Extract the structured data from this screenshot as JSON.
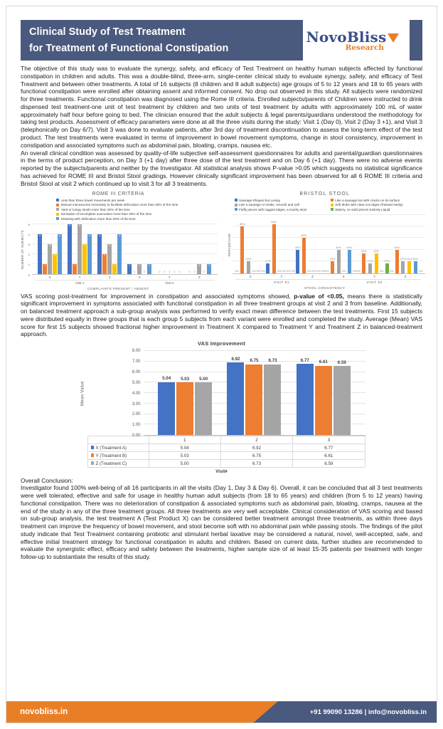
{
  "colors": {
    "banner": "#4a597e",
    "orange": "#e87f27",
    "logo_blue": "#3b4f88"
  },
  "header": {
    "title_line1": "Clinical Study of Test Treatment",
    "title_line2": "for Treatment of Functional Constipation",
    "logo_name": "NovoBliss",
    "logo_sub": "Research"
  },
  "intro": {
    "p1": "The objective of this study was to evaluate the synergy, safety, and efficacy of Test Treatment on healthy human subjects affected by functional constipation in children and adults. This was a double-blind, three-arm, single-center clinical study to evaluate synergy, safety, and efficacy of Test Treatment and between other treatments. A total of 16 subjects (8 children and 8 adult subjects) age groups of 5 to 12 years and 18 to 65 years with functional constipation were enrolled after obtaining assent and informed consent. No drop out observed in this study. All subjects were randomized for three treatments. Functional constipation was diagnosed using the Rome III criteria. Enrolled subjects/parents of Children were instructed to drink dispensed test treatment-one unit of test treatment by children and two units of test treatment by adults with approximately 100 mL of water approximately half hour before going to bed. The clinician ensured that the adult subjects & legal parents/guardians understood the methodology for taking test products. Assessment of efficacy parameters were done at all the three visits during the study: Visit 1 (Day 0), Visit 2 (Day 3 +1), and Visit 3 (telephonically on Day 6/7). Visit 3 was done to evaluate patients, after 3rd day of treatment discontinuation to assess the long-term effect of the test product. The test treatments were evaluated in terms of improvement in bowel movement symptoms, change in stool consistency, improvement in constipation and associated symptoms such as abdominal pain, bloating, cramps, nausea etc.",
    "p2": "An overall clinical condition was assessed by quality-of-life subjective self-assessment questionnaires for adults and parental/guardian questionnaires in the terms of product perception, on Day 3 (+1 day) after three dose of the test treatment and on Day 6 (+1 day). There were no adverse events reported by the subjects/parents and neither by the Investigator. All statistical analysis shows P-value >0.05 which suggests no statistical significance has achieved for ROME III and Bristol Stool gradings. However clinically significant improvement has been observed for all 6 ROME III criteria and Bristol Stool at visit 2 which continued up to visit 3 for all 3 treatments."
  },
  "vas_text": {
    "before": "VAS scoring post-treatment for improvement in constipation and associated symptoms showed, ",
    "bold": "p-value of <0.05,",
    "after": " means there is statistically significant improvement in symptoms associated with functional constipation in all three treatment groups at visit 2 and 3 from baseline. Additionally, on balanced treatment approach a sub-group analysis was performed to verify exact mean difference between the test treatments. First 15 subjects were distributed equally in three groups that is each group 5 subjects from each variant were enrolled and completed the study. Average (Mean) VAS score for first 15 subjects showed fractional higher improvement in Treatment X compared to Treatment Y and Treatment Z in balanced-treatment approach."
  },
  "conclusion": {
    "heading": "Overall Conclusion:",
    "body": "Investigator found 100% well-being of all 16 participants in all the visits (Day 1, Day 3 & Day 6). Overall, it can be concluded that all 3 test treatments were well tolerated, effective and safe for usage in healthy human adult subjects (from 18 to 65 years) and children (from 5 to 12 years) having functional constipation. There was no deterioration of constipation & associated symptoms such as abdominal pain, bloating, cramps, nausea at the end of the study in any of the three treatment groups. All three treatments are very well acceptable. Clinical consideration of VAS scoring and based on sub-group analysis, the test treatment A (Test Product X) can be considered better treatment amongst three treatments, as within three days treatment can improve the frequency of bowel movement, and stool become soft with no abdominal pain while passing stools. The findings of the pilot study indicate that Test Treatment containing probiotic and stimulant herbal laxative may be considered a natural, novel, well-accepted, safe, and effective initial treatment strategy for functional constipation in adults and children. Based on current data, further studies are recommended to evaluate the synergistic effect, efficacy and safety between the treatments, higher sample size of at least 15-35 patients per treatment with longer follow-up to substantiate the results of this study."
  },
  "footer": {
    "website": "novobliss.in",
    "contact": "+91 99090 13286 | info@novobliss.in"
  },
  "chart_data": [
    {
      "id": "rome",
      "type": "bar",
      "title": "ROME III CRITERIA",
      "ylabel": "NUMBER OF SUBJECTS",
      "xlabel": "COMPLAINTS PRESENT / ABSENT",
      "ylim": [
        0,
        5
      ],
      "yticks": [
        "0",
        "1",
        "2",
        "3",
        "4",
        "5"
      ],
      "grid_divisions": 5,
      "legend": "list",
      "legend_position": "top",
      "bar_label": "inside",
      "label_suffix": "",
      "categories": [
        "X",
        "Y",
        "Z",
        "X",
        "Y",
        "Z"
      ],
      "group_labels": [
        "Visit 1",
        "Visit 2"
      ],
      "series": [
        {
          "name": "Less than three bowel movements per week",
          "color": "#4472C4",
          "values": [
            4,
            5,
            4,
            1,
            0,
            0
          ]
        },
        {
          "name": "Manual manoeuvres necessary to facilitate defecation more than 25% of the time",
          "color": "#ED7D31",
          "values": [
            1,
            1,
            2,
            0,
            0,
            0
          ]
        },
        {
          "name": "Hard or lumpy stools more than 25% of the time",
          "color": "#A5A5A5",
          "values": [
            3,
            5,
            3,
            1,
            0,
            1
          ]
        },
        {
          "name": "Sensation of incomplete evacuation more than 25% of the time",
          "color": "#FFC000",
          "values": [
            2,
            3,
            1,
            0,
            0,
            0
          ]
        },
        {
          "name": "Straining with defecation more than 25% of the time",
          "color": "#5B9BD5",
          "values": [
            4,
            4,
            4,
            1,
            0,
            1
          ]
        }
      ]
    },
    {
      "id": "bristol",
      "type": "bar",
      "title": "BRISTOL STOOL",
      "ylabel": "PERCENTAGE",
      "xlabel": "STOOL CONSISTENCY",
      "ylim": [
        0,
        100
      ],
      "grid_divisions": 5,
      "legend": "grid",
      "legend_position": "top",
      "bar_label": "above",
      "label_suffix": "%",
      "categories": [
        "X",
        "Y",
        "Z",
        "X",
        "Y",
        "Z"
      ],
      "group_labels": [
        "VISIT 01",
        "VISIT 02"
      ],
      "series": [
        {
          "name": "Sausage-Shaped but Lumpy",
          "color": "#4472C4",
          "values": [
            0,
            17,
            40,
            0,
            0,
            0
          ]
        },
        {
          "name": "Like a sausage but with cracks on its surface",
          "color": "#ED7D31",
          "values": [
            80,
            83,
            60,
            20,
            33,
            40
          ]
        },
        {
          "name": "Like a sausage or snake, smooth and soft",
          "color": "#A5A5A5",
          "values": [
            20,
            0,
            0,
            40,
            17,
            20
          ]
        },
        {
          "name": "Soft blobs with clear-cut edges (Passed easily)",
          "color": "#FFC000",
          "values": [
            0,
            0,
            0,
            0,
            33,
            20
          ]
        },
        {
          "name": "Fluffy pieces with ragged edges, a mushy stool",
          "color": "#5B9BD5",
          "values": [
            0,
            0,
            0,
            40,
            0,
            20
          ]
        },
        {
          "name": "Watery, no solid pieces Entirely Liquid",
          "color": "#70AD47",
          "values": [
            0,
            0,
            0,
            0,
            17,
            0
          ]
        }
      ]
    },
    {
      "id": "vas",
      "type": "bar",
      "title": "VAS Improvement",
      "ylabel": "Mean Value",
      "xlabel": "Visit#",
      "ylim": [
        0,
        8
      ],
      "yticks": [
        "0.00",
        "1.00",
        "2.00",
        "3.00",
        "4.00",
        "5.00",
        "6.00",
        "7.00",
        "8.00"
      ],
      "grid_divisions": 8,
      "legend": null,
      "table": true,
      "bar_label": "above",
      "label_suffix": "",
      "categories": [
        "1",
        "2",
        "3"
      ],
      "series": [
        {
          "name": "X (Treatment A)",
          "color": "#4472C4",
          "values": [
            5.04,
            6.92,
            6.77
          ],
          "display": [
            "5.04",
            "6.92",
            "6.77"
          ]
        },
        {
          "name": "Y (Treatment B)",
          "color": "#ED7D31",
          "values": [
            5.03,
            6.75,
            6.61
          ],
          "display": [
            "5.03",
            "6.75",
            "6.61"
          ]
        },
        {
          "name": "Z (Treatment C)",
          "color": "#A5A5A5",
          "values": [
            5.0,
            6.73,
            6.59
          ],
          "display": [
            "5.00",
            "6.73",
            "6.59"
          ]
        }
      ]
    }
  ]
}
